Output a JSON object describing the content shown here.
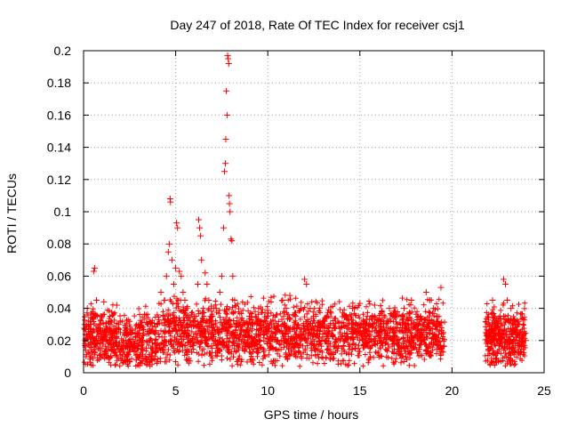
{
  "chart_data": {
    "type": "scatter",
    "title": "Day 247 of 2018, Rate Of TEC Index for receiver csj1",
    "xlabel": "GPS time / hours",
    "ylabel": "ROTI / TECUs",
    "xlim": [
      0,
      25
    ],
    "ylim": [
      0,
      0.2
    ],
    "xticks": [
      0,
      5,
      10,
      15,
      20,
      25
    ],
    "xtick_labels": [
      "0",
      "5",
      "10",
      "15",
      "20",
      "25"
    ],
    "yticks": [
      0,
      0.02,
      0.04,
      0.06,
      0.08,
      0.1,
      0.12,
      0.14,
      0.16,
      0.18,
      0.2
    ],
    "ytick_labels": [
      "0",
      "0.02",
      "0.04",
      "0.06",
      "0.08",
      "0.1",
      "0.12",
      "0.14",
      "0.16",
      "0.18",
      "0.2"
    ],
    "grid": true,
    "marker": "+",
    "color": "#ff0000",
    "series": [
      {
        "name": "ROTI",
        "points": [
          [
            0.1,
            0.018
          ],
          [
            0.2,
            0.04
          ],
          [
            0.3,
            0.012
          ],
          [
            0.4,
            0.03
          ],
          [
            0.5,
            0.022
          ],
          [
            0.55,
            0.063
          ],
          [
            0.6,
            0.065
          ],
          [
            0.7,
            0.045
          ],
          [
            0.8,
            0.028
          ],
          [
            0.9,
            0.02
          ],
          [
            1.0,
            0.035
          ],
          [
            1.1,
            0.044
          ],
          [
            1.2,
            0.025
          ],
          [
            1.4,
            0.018
          ],
          [
            1.6,
            0.022
          ],
          [
            1.8,
            0.042
          ],
          [
            1.9,
            0.03
          ],
          [
            2.0,
            0.025
          ],
          [
            2.3,
            0.02
          ],
          [
            2.6,
            0.018
          ],
          [
            2.9,
            0.024
          ],
          [
            3.2,
            0.02
          ],
          [
            3.5,
            0.03
          ],
          [
            3.7,
            0.026
          ],
          [
            4.0,
            0.036
          ],
          [
            4.2,
            0.05
          ],
          [
            4.4,
            0.045
          ],
          [
            4.5,
            0.06
          ],
          [
            4.6,
            0.075
          ],
          [
            4.65,
            0.08
          ],
          [
            4.7,
            0.108
          ],
          [
            4.72,
            0.106
          ],
          [
            4.8,
            0.07
          ],
          [
            4.9,
            0.055
          ],
          [
            5.0,
            0.065
          ],
          [
            5.05,
            0.093
          ],
          [
            5.1,
            0.09
          ],
          [
            5.2,
            0.063
          ],
          [
            5.3,
            0.06
          ],
          [
            5.4,
            0.05
          ],
          [
            5.5,
            0.045
          ],
          [
            5.6,
            0.04
          ],
          [
            5.8,
            0.03
          ],
          [
            6.0,
            0.035
          ],
          [
            6.2,
            0.055
          ],
          [
            6.25,
            0.095
          ],
          [
            6.3,
            0.09
          ],
          [
            6.35,
            0.085
          ],
          [
            6.4,
            0.07
          ],
          [
            6.6,
            0.062
          ],
          [
            6.7,
            0.055
          ],
          [
            6.8,
            0.045
          ],
          [
            7.0,
            0.035
          ],
          [
            7.2,
            0.04
          ],
          [
            7.4,
            0.05
          ],
          [
            7.5,
            0.06
          ],
          [
            7.6,
            0.09
          ],
          [
            7.65,
            0.125
          ],
          [
            7.7,
            0.13
          ],
          [
            7.72,
            0.145
          ],
          [
            7.75,
            0.175
          ],
          [
            7.8,
            0.16
          ],
          [
            7.82,
            0.197
          ],
          [
            7.85,
            0.195
          ],
          [
            7.88,
            0.192
          ],
          [
            7.9,
            0.11
          ],
          [
            7.92,
            0.105
          ],
          [
            7.95,
            0.1
          ],
          [
            8.0,
            0.083
          ],
          [
            8.05,
            0.082
          ],
          [
            8.1,
            0.06
          ],
          [
            8.2,
            0.045
          ],
          [
            8.5,
            0.03
          ],
          [
            8.8,
            0.025
          ],
          [
            9.0,
            0.035
          ],
          [
            9.2,
            0.03
          ],
          [
            9.5,
            0.04
          ],
          [
            9.8,
            0.028
          ],
          [
            10.0,
            0.035
          ],
          [
            10.2,
            0.03
          ],
          [
            10.5,
            0.036
          ],
          [
            10.8,
            0.045
          ],
          [
            11.0,
            0.04
          ],
          [
            11.2,
            0.048
          ],
          [
            11.5,
            0.035
          ],
          [
            11.8,
            0.04
          ],
          [
            12.0,
            0.058
          ],
          [
            12.1,
            0.055
          ],
          [
            12.3,
            0.04
          ],
          [
            12.6,
            0.035
          ],
          [
            13.0,
            0.03
          ],
          [
            13.4,
            0.038
          ],
          [
            13.8,
            0.032
          ],
          [
            14.2,
            0.035
          ],
          [
            14.6,
            0.04
          ],
          [
            15.0,
            0.043
          ],
          [
            15.4,
            0.035
          ],
          [
            15.8,
            0.042
          ],
          [
            16.2,
            0.038
          ],
          [
            16.6,
            0.04
          ],
          [
            17.0,
            0.035
          ],
          [
            17.4,
            0.04
          ],
          [
            17.8,
            0.045
          ],
          [
            18.0,
            0.03
          ],
          [
            18.3,
            0.035
          ],
          [
            18.6,
            0.05
          ],
          [
            18.8,
            0.045
          ],
          [
            19.0,
            0.04
          ],
          [
            19.2,
            0.035
          ],
          [
            19.4,
            0.053
          ],
          [
            22.0,
            0.03
          ],
          [
            22.2,
            0.045
          ],
          [
            22.4,
            0.028
          ],
          [
            22.6,
            0.035
          ],
          [
            22.8,
            0.058
          ],
          [
            22.9,
            0.055
          ],
          [
            23.0,
            0.045
          ],
          [
            23.2,
            0.04
          ],
          [
            23.4,
            0.033
          ],
          [
            23.6,
            0.03
          ],
          [
            23.8,
            0.025
          ],
          [
            24.0,
            0.02
          ]
        ]
      }
    ]
  }
}
